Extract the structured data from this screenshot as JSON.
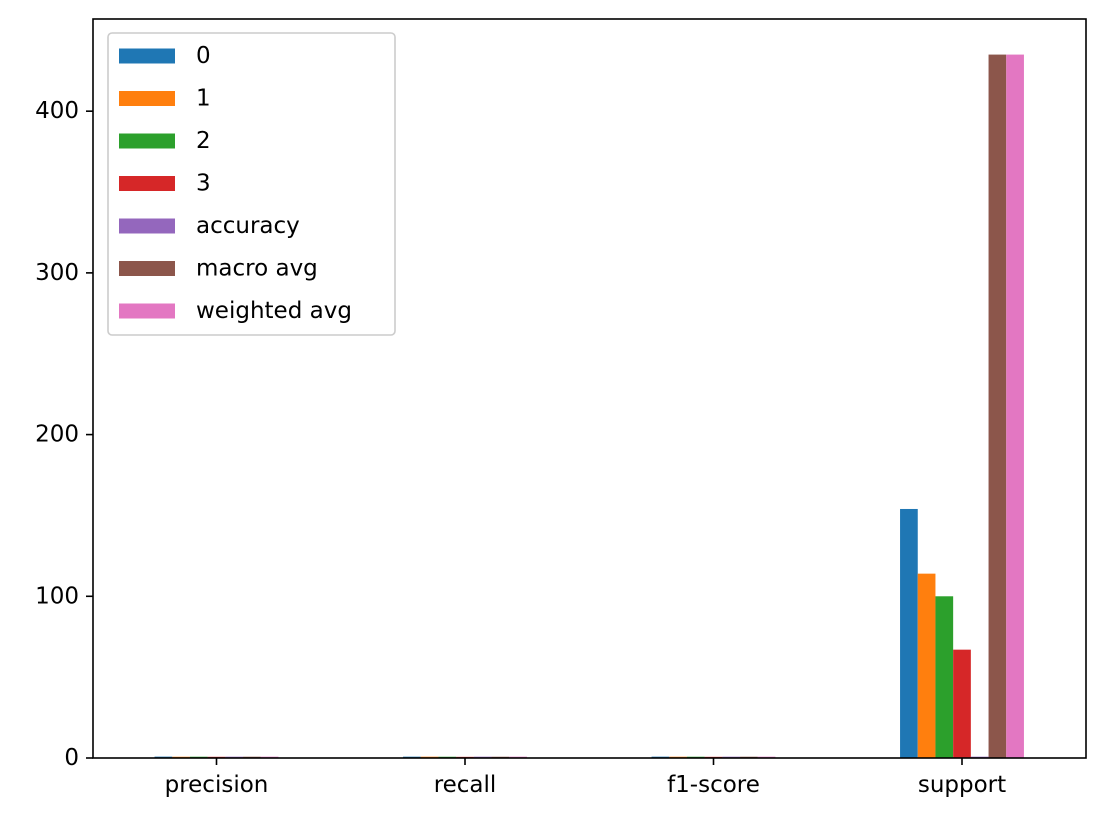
{
  "chart_data": {
    "type": "bar",
    "categories": [
      "precision",
      "recall",
      "f1-score",
      "support"
    ],
    "series": [
      {
        "name": "0",
        "color": "#1f77b4",
        "values": [
          0.85,
          0.82,
          0.83,
          154
        ]
      },
      {
        "name": "1",
        "color": "#ff7f0e",
        "values": [
          0.78,
          0.81,
          0.79,
          114
        ]
      },
      {
        "name": "2",
        "color": "#2ca02c",
        "values": [
          0.8,
          0.78,
          0.79,
          100
        ]
      },
      {
        "name": "3",
        "color": "#d62728",
        "values": [
          0.75,
          0.72,
          0.73,
          67
        ]
      },
      {
        "name": "accuracy",
        "color": "#9467bd",
        "values": [
          0.81,
          0.81,
          0.81,
          0.81
        ]
      },
      {
        "name": "macro avg",
        "color": "#8c564b",
        "values": [
          0.8,
          0.78,
          0.79,
          435
        ]
      },
      {
        "name": "weighted avg",
        "color": "#e377c2",
        "values": [
          0.81,
          0.81,
          0.81,
          435
        ]
      }
    ],
    "yticks": [
      0,
      100,
      200,
      300,
      400
    ],
    "ylim": [
      0,
      457
    ],
    "legend_position": "top-left",
    "grid": false,
    "title": "",
    "xlabel": "",
    "ylabel": ""
  }
}
